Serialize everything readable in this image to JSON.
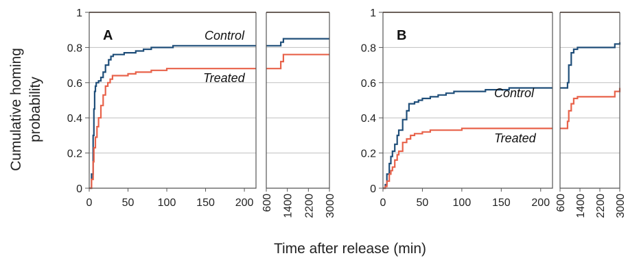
{
  "figure": {
    "ylabel_line1": "Cumulative homing",
    "ylabel_line2": "probability",
    "xlabel": "Time after release (min)",
    "colors": {
      "control": "#1f4e79",
      "treated": "#e8624a",
      "grid": "#bfbfbf",
      "axis": "#555555"
    }
  },
  "chart_data": [
    {
      "type": "line",
      "panel": "A",
      "ylim": [
        0,
        1
      ],
      "yticks": [
        "0",
        "0.2",
        "0.4",
        "0.6",
        "0.8",
        "1"
      ],
      "grid": "horizontal",
      "main": {
        "xlim": [
          0,
          215
        ],
        "xticks": [
          "0",
          "50",
          "100",
          "150",
          "200"
        ],
        "series": [
          {
            "name": "Control",
            "x": [
              0,
              3,
              5,
              6,
              7,
              8,
              9,
              10,
              12,
              15,
              18,
              21,
              25,
              28,
              31,
              40,
              45,
              50,
              60,
              70,
              80,
              90,
              100,
              108,
              120,
              150,
              200,
              215
            ],
            "y": [
              0,
              0.08,
              0.3,
              0.45,
              0.55,
              0.58,
              0.6,
              0.6,
              0.61,
              0.63,
              0.66,
              0.7,
              0.73,
              0.75,
              0.76,
              0.76,
              0.77,
              0.77,
              0.78,
              0.79,
              0.8,
              0.8,
              0.8,
              0.81,
              0.81,
              0.81,
              0.81,
              0.81
            ]
          },
          {
            "name": "Treated",
            "x": [
              0,
              3,
              5,
              6,
              8,
              10,
              12,
              15,
              18,
              21,
              24,
              27,
              30,
              35,
              40,
              50,
              60,
              70,
              80,
              100,
              120,
              150,
              200,
              215
            ],
            "y": [
              0,
              0.05,
              0.15,
              0.23,
              0.29,
              0.35,
              0.4,
              0.47,
              0.53,
              0.58,
              0.6,
              0.62,
              0.64,
              0.64,
              0.64,
              0.65,
              0.66,
              0.66,
              0.67,
              0.68,
              0.68,
              0.68,
              0.68,
              0.68
            ]
          }
        ]
      },
      "extension": {
        "xlim": [
          600,
          3000
        ],
        "xticks": [
          "600",
          "1400",
          "2200",
          "3000"
        ],
        "series": [
          {
            "name": "Control",
            "x": [
              600,
              1100,
              1150,
              1250,
              3000
            ],
            "y": [
              0.81,
              0.81,
              0.83,
              0.85,
              0.85
            ]
          },
          {
            "name": "Treated",
            "x": [
              600,
              1100,
              1150,
              1250,
              3000
            ],
            "y": [
              0.68,
              0.68,
              0.72,
              0.76,
              0.76
            ]
          }
        ]
      },
      "annotations": {
        "panel_label": "A",
        "control_label": "Control",
        "treated_label": "Treated"
      }
    },
    {
      "type": "line",
      "panel": "B",
      "ylim": [
        0,
        1
      ],
      "yticks": [
        "0",
        "0.2",
        "0.4",
        "0.6",
        "0.8",
        "1"
      ],
      "grid": "horizontal",
      "main": {
        "xlim": [
          0,
          215
        ],
        "xticks": [
          "0",
          "50",
          "100",
          "150",
          "200"
        ],
        "series": [
          {
            "name": "Control",
            "x": [
              0,
              3,
              5,
              8,
              10,
              12,
              15,
              18,
              20,
              25,
              30,
              33,
              40,
              45,
              50,
              60,
              70,
              80,
              90,
              100,
              110,
              130,
              150,
              160,
              200,
              215
            ],
            "y": [
              0,
              0.02,
              0.08,
              0.14,
              0.18,
              0.21,
              0.25,
              0.3,
              0.33,
              0.39,
              0.44,
              0.48,
              0.49,
              0.5,
              0.51,
              0.52,
              0.53,
              0.54,
              0.55,
              0.55,
              0.55,
              0.56,
              0.56,
              0.57,
              0.57,
              0.57
            ]
          },
          {
            "name": "Treated",
            "x": [
              0,
              3,
              5,
              8,
              10,
              12,
              15,
              18,
              20,
              25,
              30,
              35,
              40,
              50,
              60,
              80,
              100,
              150,
              200,
              215
            ],
            "y": [
              0,
              0.01,
              0.04,
              0.08,
              0.1,
              0.12,
              0.16,
              0.19,
              0.21,
              0.26,
              0.28,
              0.3,
              0.31,
              0.32,
              0.33,
              0.33,
              0.34,
              0.34,
              0.34,
              0.34
            ]
          }
        ]
      },
      "extension": {
        "xlim": [
          600,
          3000
        ],
        "xticks": [
          "600",
          "1400",
          "2200",
          "3000"
        ],
        "series": [
          {
            "name": "Control",
            "x": [
              600,
              820,
              900,
              950,
              1050,
              1150,
              1300,
              2700,
              2800,
              3000
            ],
            "y": [
              0.57,
              0.57,
              0.6,
              0.7,
              0.77,
              0.79,
              0.8,
              0.8,
              0.82,
              0.83
            ]
          },
          {
            "name": "Treated",
            "x": [
              600,
              820,
              900,
              950,
              1050,
              1150,
              1300,
              1500,
              2700,
              2800,
              3000
            ],
            "y": [
              0.34,
              0.34,
              0.38,
              0.44,
              0.48,
              0.51,
              0.52,
              0.52,
              0.52,
              0.55,
              0.57
            ]
          }
        ]
      },
      "annotations": {
        "panel_label": "B",
        "control_label": "Control",
        "treated_label": "Treated"
      }
    }
  ]
}
